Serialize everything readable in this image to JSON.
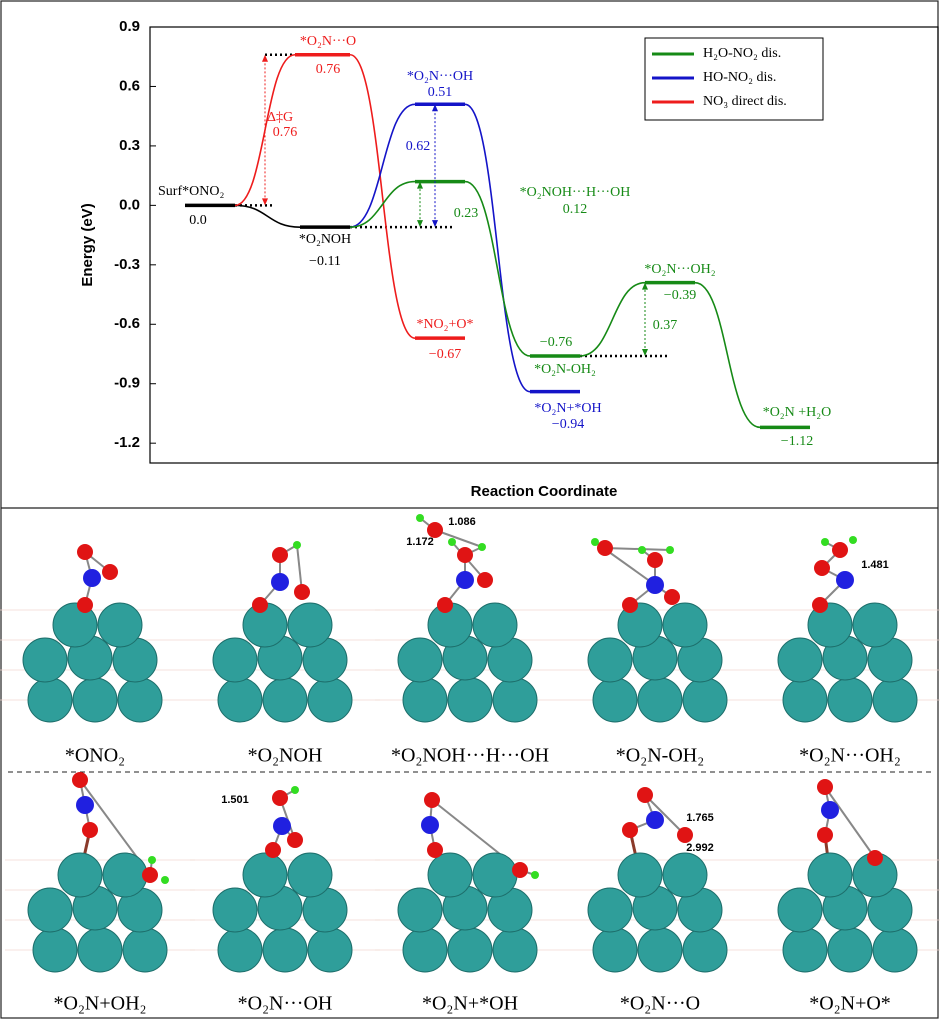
{
  "chart_data": {
    "type": "energy-profile",
    "x_label": "Reaction Coordinate",
    "y_label": "Energy (eV)",
    "ylim": [
      -1.3,
      0.9
    ],
    "yticks": [
      0.9,
      0.6,
      0.3,
      {
        "value": 0,
        "label": "0.0"
      },
      -0.3,
      -0.6,
      -0.9,
      -1.2
    ],
    "legend": "upper right",
    "series": [
      {
        "name": "H₂O-NO₂ dis.",
        "color": "#168a16"
      },
      {
        "name": "HO-NO₂ dis.",
        "color": "#1414c8"
      },
      {
        "name": "NO₃ direct dis.",
        "color": "#ee1c1c"
      }
    ],
    "levels": [
      {
        "label": "Surf*ONO₂",
        "value": 0,
        "value_label": "0.0",
        "color": "#000000"
      },
      {
        "label": "*O₂NOH",
        "value": -0.11,
        "value_label": "−0.11",
        "color": "#000000"
      },
      {
        "label": "*O₂N···O",
        "value": 0.76,
        "value_label": "0.76",
        "color": "#ee1c1c"
      },
      {
        "label": "*NO₂+O*",
        "value": -0.67,
        "value_label": "−0.67",
        "color": "#ee1c1c"
      },
      {
        "label": "*O₂N···OH",
        "value": 0.51,
        "value_label": "0.51",
        "color": "#1414c8"
      },
      {
        "label": "*O₂N+*OH",
        "value": -0.94,
        "value_label": "−0.94",
        "color": "#1414c8"
      },
      {
        "label": "*O₂NOH···H···OH",
        "value": 0.12,
        "value_label": "0.12",
        "color": "#168a16"
      },
      {
        "label": "*O₂N-OH₂",
        "value": -0.76,
        "value_label": "−0.76",
        "color": "#168a16"
      },
      {
        "label": "*O₂N···OH₂",
        "value": -0.39,
        "value_label": "−0.39",
        "color": "#168a16"
      },
      {
        "label": "*O₂N +H₂O",
        "value": -1.12,
        "value_label": "−1.12",
        "color": "#168a16"
      }
    ],
    "barriers": [
      {
        "label": "Δ‡G",
        "value": 0.76,
        "color": "#ee1c1c"
      },
      {
        "value": 0.62,
        "color": "#1414c8"
      },
      {
        "value": 0.23,
        "color": "#168a16"
      },
      {
        "value": 0.37,
        "color": "#168a16"
      }
    ]
  },
  "structures": [
    {
      "caption": "*ONO₂"
    },
    {
      "caption": "*O₂NOH"
    },
    {
      "caption": "*O₂NOH···H···OH",
      "bond_labels": [
        "1.086",
        "1.172"
      ]
    },
    {
      "caption": "*O₂N-OH₂"
    },
    {
      "caption": "*O₂N···OH₂",
      "bond_labels": [
        "1.481"
      ]
    },
    {
      "caption": "*O₂N+OH₂"
    },
    {
      "caption": "*O₂N···OH",
      "bond_labels": [
        "1.501"
      ]
    },
    {
      "caption": "*O₂N+*OH"
    },
    {
      "caption": "*O₂N···O",
      "bond_labels": [
        "1.765",
        "2.992"
      ]
    },
    {
      "caption": "*O₂N+O*"
    }
  ]
}
